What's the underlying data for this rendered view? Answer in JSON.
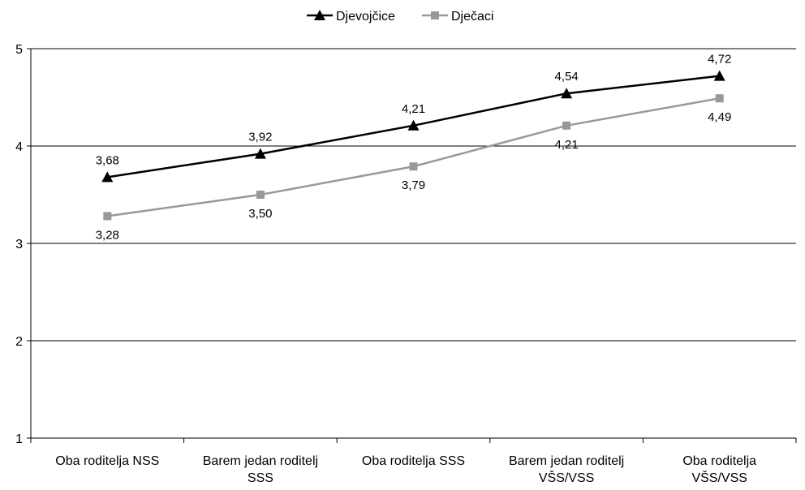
{
  "chart_data": {
    "type": "line",
    "title": "",
    "xlabel": "",
    "ylabel": "",
    "ylim": [
      1,
      5
    ],
    "yticks": [
      "1",
      "2",
      "3",
      "4",
      "5"
    ],
    "grid": true,
    "legend_position": "top-center",
    "categories": [
      [
        "Oba roditelja NSS"
      ],
      [
        "Barem jedan roditelj",
        "SSS"
      ],
      [
        "Oba roditelja SSS"
      ],
      [
        "Barem jedan roditelj",
        "VŠS/VSS"
      ],
      [
        "Oba roditelja",
        "VŠS/VSS"
      ]
    ],
    "series": [
      {
        "name": "Djevojčice",
        "marker": "triangle",
        "color": "#000000",
        "values": [
          3.68,
          3.92,
          4.21,
          4.54,
          4.72
        ],
        "labels": [
          "3,68",
          "3,92",
          "4,21",
          "4,54",
          "4,72"
        ],
        "label_position": "above"
      },
      {
        "name": "Dječaci",
        "marker": "square",
        "color": "#999999",
        "values": [
          3.28,
          3.5,
          3.79,
          4.21,
          4.49
        ],
        "labels": [
          "3,28",
          "3,50",
          "3,79",
          "4,21",
          "4,49"
        ],
        "label_position": "below"
      }
    ]
  }
}
